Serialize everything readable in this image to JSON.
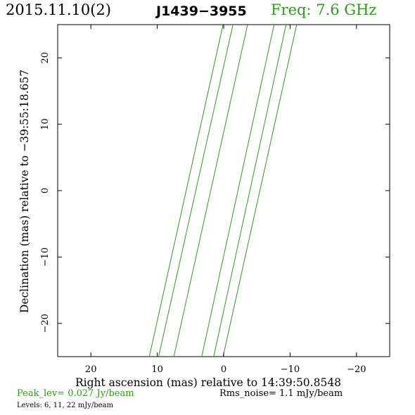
{
  "header": {
    "date": "2015.11.10(2)",
    "source": "J1439−3955",
    "freq": "Freq: 7.6 GHz"
  },
  "footer": {
    "peak": "Peak_lev=  0.027 Jy/beam",
    "rms": "Rms_noise=   1.1 mJy/beam",
    "levels": "Levels:   6,  11,  22 mJy/beam"
  },
  "colors": {
    "contour": "#2f9a1c",
    "axis": "#000000"
  },
  "chart_data": {
    "type": "line",
    "xlabel": "Right ascension (mas) relative to 14:39:50.8548",
    "ylabel": "Declination (mas) relative to −39:55:18.657",
    "xlim": [
      25,
      -25
    ],
    "ylim": [
      -25,
      25
    ],
    "xticks": [
      20,
      10,
      0,
      -10,
      -20
    ],
    "yticks": [
      20,
      10,
      0,
      -10,
      -20
    ],
    "xtick_labels": [
      "20",
      "10",
      "0",
      "−10",
      "−20"
    ],
    "ytick_labels": [
      "20",
      "10",
      "0",
      "−10",
      "−20"
    ],
    "contour_levels_mJy": [
      6,
      11,
      22
    ],
    "series": [
      {
        "x": [
          11.2,
          0.1
        ],
        "y": [
          -25,
          25
        ]
      },
      {
        "x": [
          9.8,
          -1.4
        ],
        "y": [
          -25,
          25
        ]
      },
      {
        "x": [
          7.5,
          -3.6
        ],
        "y": [
          -25,
          25
        ]
      },
      {
        "x": [
          3.3,
          -7.6
        ],
        "y": [
          -25,
          25
        ]
      },
      {
        "x": [
          1.5,
          -9.4
        ],
        "y": [
          -25,
          25
        ]
      },
      {
        "x": [
          0.1,
          -11.0
        ],
        "y": [
          -25,
          25
        ]
      }
    ]
  }
}
